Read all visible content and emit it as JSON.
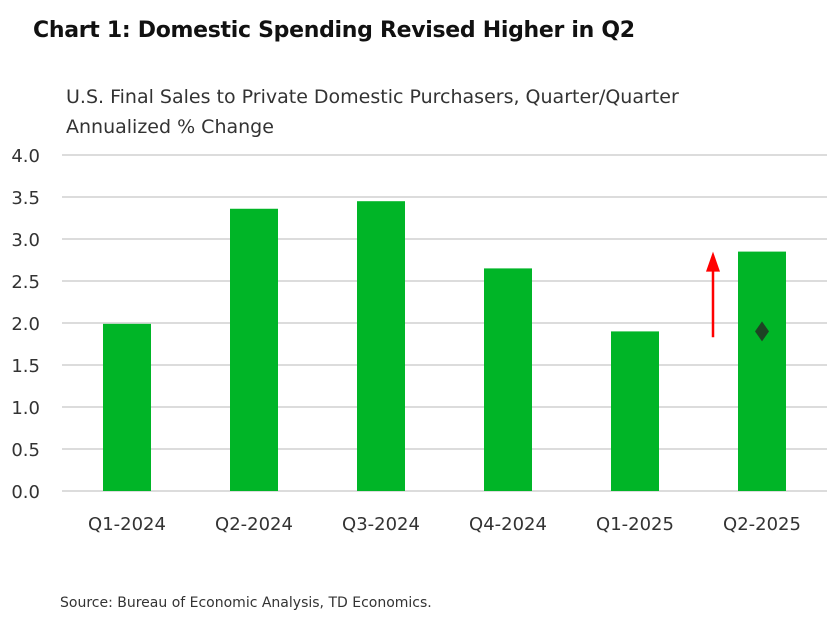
{
  "chart_data": {
    "type": "bar",
    "title": "Chart 1: Domestic Spending Revised Higher in Q2",
    "subtitle": [
      "U.S. Final Sales to Private Domestic Purchasers, Quarter/Quarter",
      "Annualized % Change"
    ],
    "categories": [
      "Q1-2024",
      "Q2-2024",
      "Q3-2024",
      "Q4-2024",
      "Q1-2025",
      "Q2-2025"
    ],
    "values": [
      1.99,
      3.36,
      3.45,
      2.65,
      1.9,
      2.85
    ],
    "markers": [
      {
        "category": "Q2-2025",
        "value": 1.9,
        "shape": "diamond",
        "color": "#1d4424"
      }
    ],
    "annotations": [
      {
        "type": "arrow",
        "direction": "up",
        "near": "Q2-2025",
        "from": 1.83,
        "to": 2.85,
        "color": "#ff0000"
      }
    ],
    "ylim": [
      0,
      4.0
    ],
    "yticks": [
      "0.0",
      "0.5",
      "1.0",
      "1.5",
      "2.0",
      "2.5",
      "3.0",
      "3.5",
      "4.0"
    ],
    "grid": true,
    "bar_color": "#00b527",
    "xlabel": "",
    "ylabel": ""
  },
  "source": "Source: Bureau of Economic Analysis, TD Economics."
}
